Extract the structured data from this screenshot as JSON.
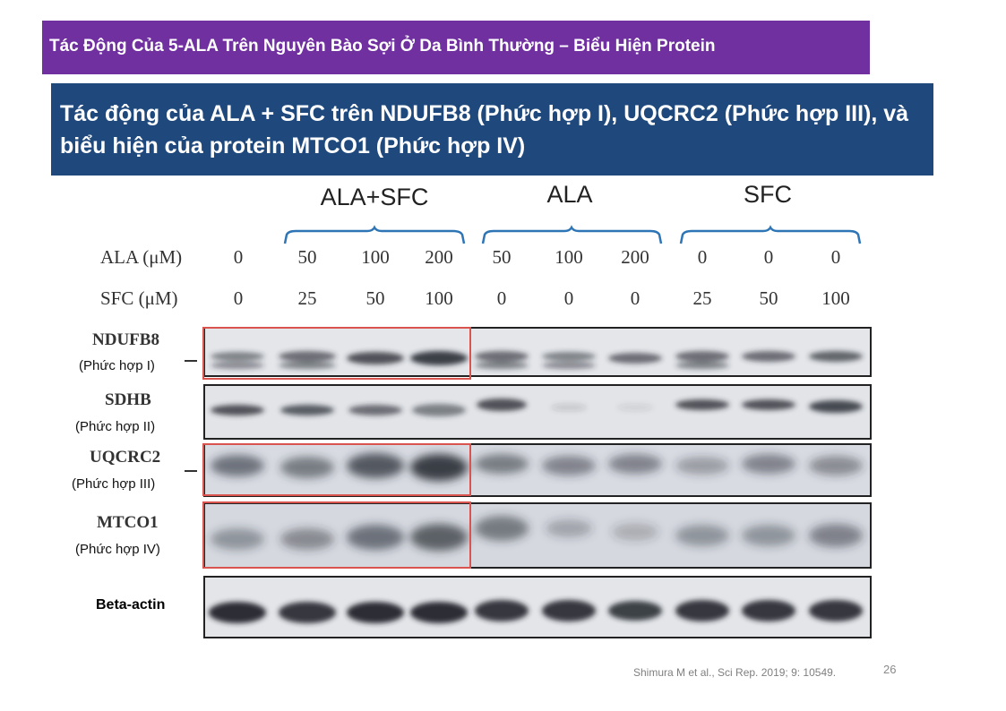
{
  "header": {
    "banner_text": "Tác Động Của 5-ALA Trên Nguyên Bào Sợi Ở Da Bình Thường – Biểu Hiện Protein",
    "banner_color": "#7030a0"
  },
  "title": {
    "text": "Tác động của ALA + SFC trên NDUFB8 (Phức hợp I), UQCRC2 (Phức hợp III), và biểu hiện của protein MTCO1 (Phức hợp IV)",
    "color": "#1f497d"
  },
  "figure": {
    "groups": [
      "ALA+SFC",
      "ALA",
      "SFC"
    ],
    "ala_label": "ALA (μM)",
    "sfc_label": "SFC (μM)",
    "ala_values": [
      "0",
      "50",
      "100",
      "200",
      "50",
      "100",
      "200",
      "0",
      "0",
      "0"
    ],
    "sfc_values": [
      "0",
      "25",
      "50",
      "100",
      "0",
      "0",
      "0",
      "25",
      "50",
      "100"
    ],
    "blots": [
      {
        "protein": "NDUFB8",
        "complex": "(Phức hợp I)",
        "highlighted": true
      },
      {
        "protein": "SDHB",
        "complex": "(Phức hợp II)",
        "highlighted": false
      },
      {
        "protein": "UQCRC2",
        "complex": "(Phức hợp III)",
        "highlighted": true
      },
      {
        "protein": "MTCO1",
        "complex": "(Phức hợp IV)",
        "highlighted": true
      },
      {
        "protein": "Beta-actin",
        "complex": "",
        "highlighted": false
      }
    ],
    "highlight_color": "#d9534f"
  },
  "footer": {
    "citation": "Shimura M et al., Sci Rep. 2019; 9: 10549.",
    "page_number": "26"
  }
}
